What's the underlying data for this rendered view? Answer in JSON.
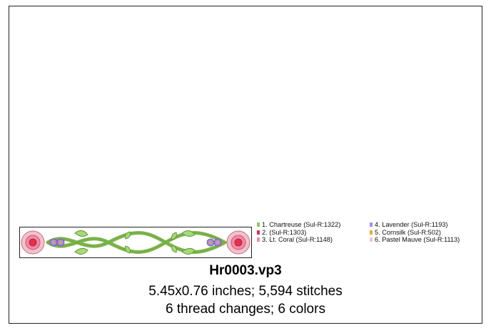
{
  "file_name": "Hr0003.vp3",
  "dimensions_text": "5.45x0.76 inches; 5,594 stitches",
  "threads_text": "6 thread changes; 6 colors",
  "threads": [
    {
      "label": "1.  Chartreuse (Sul-R:1322)",
      "color": "#8fc860"
    },
    {
      "label": "2.   (Sul-R:1303)",
      "color": "#e8304a"
    },
    {
      "label": "3.  Lt. Coral (Sul-R:1148)",
      "color": "#f08aa8"
    },
    {
      "label": "4.  Lavender (Sul-R:1193)",
      "color": "#a88ce0"
    },
    {
      "label": "5.  Cornsilk (Sul-R:502)",
      "color": "#f0a830"
    },
    {
      "label": "6.  Pastel Mauve (Sul-R:1113)",
      "color": "#f5c0c8"
    }
  ]
}
